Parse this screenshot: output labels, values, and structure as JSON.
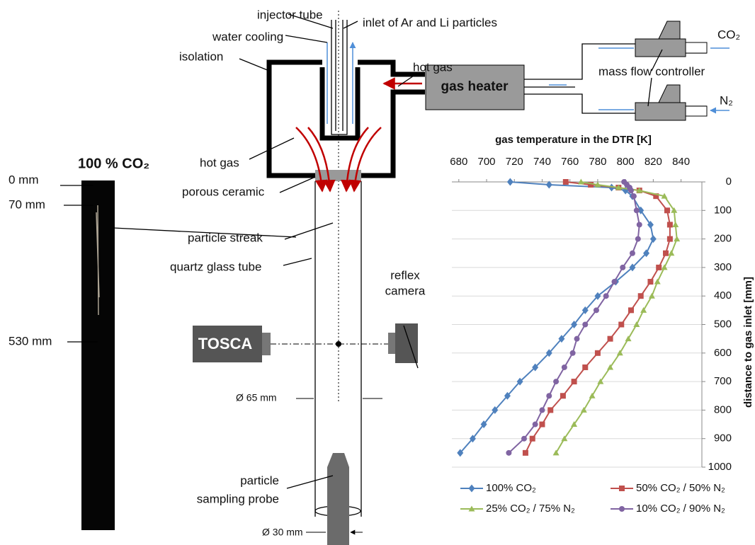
{
  "image_panel": {
    "title": "100 % CO₂",
    "labels": [
      "0 mm",
      "70 mm",
      "530 mm"
    ]
  },
  "diagram": {
    "injector_tube": "injector tube",
    "inlet": "inlet of Ar and Li particles",
    "water_cooling": "water cooling",
    "isolation": "isolation",
    "hot_gas_top": "hot gas",
    "gas_heater": "gas heater",
    "co2": "CO₂",
    "n2": "N₂",
    "mass_flow_controller": "mass flow controller",
    "hot_gas_left": "hot gas",
    "porous_ceramic": "porous ceramic",
    "particle_streak": "particle streak",
    "quartz_glass_tube": "quartz glass tube",
    "reflex_camera": [
      "reflex",
      "camera"
    ],
    "tosca": "TOSCA",
    "d65": "Ø 65 mm",
    "sampling_probe": [
      "particle",
      "sampling probe"
    ],
    "d30": "Ø 30 mm"
  },
  "chart_data": {
    "type": "line",
    "orientation": "horizontal",
    "ylabel": "gas temperature in the DTR [K]",
    "xlabel": "distance to gas inlet [mm]",
    "x": [
      0,
      10,
      20,
      30,
      50,
      100,
      150,
      200,
      250,
      300,
      350,
      400,
      450,
      500,
      550,
      600,
      650,
      700,
      750,
      800,
      850,
      900,
      950
    ],
    "xlim": [
      0,
      1000
    ],
    "xticks": [
      0,
      100,
      200,
      300,
      400,
      500,
      600,
      700,
      800,
      900,
      1000
    ],
    "ylim": [
      675,
      855
    ],
    "yticks": [
      680,
      700,
      720,
      740,
      760,
      780,
      800,
      820,
      840
    ],
    "grid": true,
    "legend": "bottom",
    "series": [
      {
        "name": "100% CO₂",
        "color": "#4f81bd",
        "marker": "diamond",
        "values": [
          717,
          745,
          790,
          800,
          805,
          811,
          818,
          820,
          815,
          805,
          793,
          780,
          771,
          763,
          754,
          745,
          735,
          724,
          715,
          706,
          698,
          690,
          681
        ]
      },
      {
        "name": "50% CO₂ / 50% N₂",
        "color": "#c0504d",
        "marker": "square",
        "values": [
          757,
          775,
          795,
          810,
          822,
          830,
          832,
          832,
          829,
          824,
          818,
          811,
          804,
          797,
          789,
          780,
          771,
          763,
          755,
          746,
          740,
          733,
          728
        ]
      },
      {
        "name": "25% CO₂ / 75% N₂",
        "color": "#9bbb59",
        "marker": "triangle",
        "values": [
          768,
          780,
          795,
          810,
          828,
          835,
          836,
          837,
          833,
          828,
          823,
          819,
          813,
          808,
          802,
          796,
          789,
          782,
          776,
          770,
          763,
          756,
          750
        ]
      },
      {
        "name": "10% CO₂ / 90% N₂",
        "color": "#8064a2",
        "marker": "circle",
        "values": [
          799,
          801,
          803,
          804,
          806,
          808,
          810,
          809,
          805,
          798,
          792,
          786,
          779,
          771,
          765,
          762,
          756,
          750,
          745,
          740,
          735,
          727,
          716
        ]
      }
    ]
  }
}
